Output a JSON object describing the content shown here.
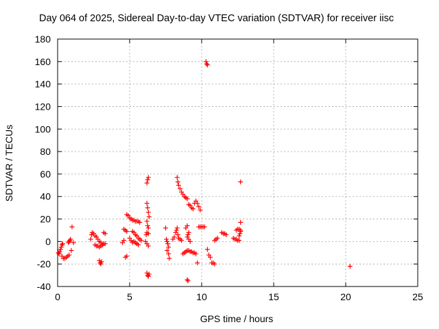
{
  "chart_data": {
    "type": "scatter",
    "title": "Day 064 of 2025, Sidereal Day-to-day VTEC variation (SDTVAR) for receiver iisc",
    "xlabel": "GPS time / hours",
    "ylabel": "SDTVAR / TECUs",
    "xlim": [
      0,
      25
    ],
    "ylim": [
      -40,
      180
    ],
    "xticks": [
      "0",
      "5",
      "10",
      "15",
      "20",
      "25"
    ],
    "yticks": [
      "-40",
      "-20",
      "0",
      "20",
      "40",
      "60",
      "80",
      "100",
      "120",
      "140",
      "160",
      "180"
    ],
    "grid": true,
    "marker": "+",
    "color": "#ff0000",
    "series": [
      {
        "name": "SDTVAR",
        "points": [
          [
            0.05,
            -10
          ],
          [
            0.1,
            -11
          ],
          [
            0.15,
            -9
          ],
          [
            0.2,
            -7
          ],
          [
            0.25,
            -5
          ],
          [
            0.3,
            -3
          ],
          [
            0.35,
            -2
          ],
          [
            0.3,
            -13
          ],
          [
            0.4,
            -15
          ],
          [
            0.5,
            -15
          ],
          [
            0.6,
            -14
          ],
          [
            0.7,
            -13
          ],
          [
            0.8,
            -12
          ],
          [
            0.75,
            -1
          ],
          [
            0.8,
            0
          ],
          [
            0.85,
            1
          ],
          [
            0.9,
            2
          ],
          [
            0.95,
            -8
          ],
          [
            1.0,
            13
          ],
          [
            1.1,
            -1
          ],
          [
            2.3,
            2
          ],
          [
            2.35,
            6
          ],
          [
            2.4,
            8
          ],
          [
            2.5,
            7
          ],
          [
            2.6,
            5
          ],
          [
            2.7,
            4
          ],
          [
            2.8,
            2
          ],
          [
            2.9,
            0
          ],
          [
            3.0,
            -1
          ],
          [
            3.1,
            -3
          ],
          [
            2.6,
            -3
          ],
          [
            2.7,
            -4
          ],
          [
            2.8,
            -4
          ],
          [
            2.9,
            -5
          ],
          [
            3.0,
            -4
          ],
          [
            3.1,
            -3
          ],
          [
            3.2,
            -2
          ],
          [
            3.3,
            -2
          ],
          [
            2.9,
            -17
          ],
          [
            2.95,
            -19
          ],
          [
            3.0,
            -20
          ],
          [
            3.05,
            -18
          ],
          [
            3.2,
            8
          ],
          [
            3.3,
            7
          ],
          [
            4.5,
            -1
          ],
          [
            4.6,
            1
          ],
          [
            4.6,
            11
          ],
          [
            4.7,
            10
          ],
          [
            4.8,
            9
          ],
          [
            4.7,
            -14
          ],
          [
            4.8,
            -13
          ],
          [
            4.8,
            24
          ],
          [
            4.9,
            23
          ],
          [
            5.0,
            21
          ],
          [
            5.1,
            20
          ],
          [
            5.2,
            19
          ],
          [
            5.3,
            19
          ],
          [
            5.4,
            18
          ],
          [
            5.5,
            18
          ],
          [
            5.6,
            18
          ],
          [
            5.7,
            17
          ],
          [
            5.2,
            9
          ],
          [
            5.3,
            8
          ],
          [
            5.4,
            6
          ],
          [
            5.5,
            5
          ],
          [
            5.6,
            3
          ],
          [
            5.7,
            2
          ],
          [
            5.8,
            1
          ],
          [
            5.3,
            0
          ],
          [
            5.4,
            -1
          ],
          [
            5.5,
            -2
          ],
          [
            5.6,
            -3
          ],
          [
            5.0,
            3
          ],
          [
            5.1,
            1
          ],
          [
            5.2,
            -1
          ],
          [
            6.1,
            0
          ],
          [
            6.2,
            -2
          ],
          [
            6.3,
            -4
          ],
          [
            6.15,
            6
          ],
          [
            6.2,
            8
          ],
          [
            6.3,
            7
          ],
          [
            6.2,
            34
          ],
          [
            6.25,
            30
          ],
          [
            6.3,
            26
          ],
          [
            6.35,
            22
          ],
          [
            6.2,
            18
          ],
          [
            6.25,
            14
          ],
          [
            6.3,
            12
          ],
          [
            6.2,
            52
          ],
          [
            6.25,
            55
          ],
          [
            6.3,
            57
          ],
          [
            6.2,
            -28
          ],
          [
            6.25,
            -30
          ],
          [
            6.3,
            -31
          ],
          [
            6.35,
            -29
          ],
          [
            7.5,
            12
          ],
          [
            7.55,
            2
          ],
          [
            7.6,
            0
          ],
          [
            7.65,
            -2
          ],
          [
            7.7,
            -5
          ],
          [
            7.6,
            -8
          ],
          [
            7.7,
            -11
          ],
          [
            7.75,
            -15
          ],
          [
            8.0,
            2
          ],
          [
            8.1,
            4
          ],
          [
            8.2,
            8
          ],
          [
            8.25,
            10
          ],
          [
            8.3,
            12
          ],
          [
            8.35,
            6
          ],
          [
            8.4,
            3
          ],
          [
            8.5,
            2
          ],
          [
            8.6,
            1
          ],
          [
            8.3,
            57
          ],
          [
            8.35,
            53
          ],
          [
            8.4,
            50
          ],
          [
            8.5,
            47
          ],
          [
            8.6,
            44
          ],
          [
            8.7,
            42
          ],
          [
            8.8,
            40
          ],
          [
            8.9,
            39
          ],
          [
            9.0,
            38
          ],
          [
            8.7,
            -11
          ],
          [
            8.8,
            -10
          ],
          [
            8.9,
            -9
          ],
          [
            9.0,
            -8
          ],
          [
            9.1,
            -8
          ],
          [
            9.2,
            -9
          ],
          [
            9.3,
            -9
          ],
          [
            9.4,
            -10
          ],
          [
            9.5,
            -10
          ],
          [
            9.6,
            -11
          ],
          [
            8.9,
            12
          ],
          [
            9.0,
            14
          ],
          [
            9.1,
            8
          ],
          [
            9.05,
            6
          ],
          [
            9.0,
            4
          ],
          [
            9.1,
            2
          ],
          [
            9.2,
            0
          ],
          [
            9.0,
            -34
          ],
          [
            9.05,
            -35
          ],
          [
            9.1,
            33
          ],
          [
            9.2,
            32
          ],
          [
            9.3,
            30
          ],
          [
            9.4,
            29
          ],
          [
            9.5,
            34
          ],
          [
            9.6,
            36
          ],
          [
            9.7,
            34
          ],
          [
            9.8,
            31
          ],
          [
            9.9,
            28
          ],
          [
            9.7,
            -19
          ],
          [
            9.8,
            13
          ],
          [
            9.9,
            13
          ],
          [
            10.0,
            13
          ],
          [
            10.1,
            13
          ],
          [
            10.2,
            13
          ],
          [
            10.3,
            160
          ],
          [
            10.35,
            158
          ],
          [
            10.4,
            157
          ],
          [
            10.4,
            -7
          ],
          [
            10.5,
            -12
          ],
          [
            10.6,
            -14
          ],
          [
            10.7,
            -19
          ],
          [
            10.8,
            -19
          ],
          [
            10.9,
            -20
          ],
          [
            10.9,
            1
          ],
          [
            11.0,
            2
          ],
          [
            11.1,
            3
          ],
          [
            11.4,
            8
          ],
          [
            11.5,
            7
          ],
          [
            11.6,
            7
          ],
          [
            11.7,
            6
          ],
          [
            12.2,
            3
          ],
          [
            12.3,
            2
          ],
          [
            12.4,
            2
          ],
          [
            12.5,
            1
          ],
          [
            12.6,
            1
          ],
          [
            12.4,
            10
          ],
          [
            12.5,
            11
          ],
          [
            12.6,
            11
          ],
          [
            12.7,
            10
          ],
          [
            12.6,
            5
          ],
          [
            12.65,
            7
          ],
          [
            12.7,
            9
          ],
          [
            12.7,
            17
          ],
          [
            12.7,
            53
          ],
          [
            20.3,
            -22
          ]
        ]
      }
    ]
  }
}
